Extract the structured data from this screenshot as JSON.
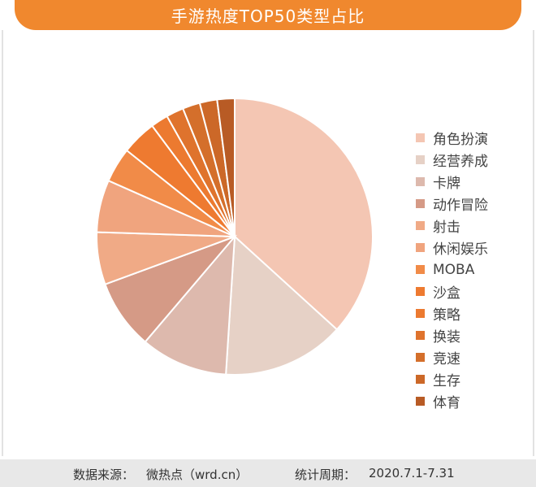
{
  "header": {
    "title": "手游热度TOP50类型占比"
  },
  "chart_data": {
    "type": "pie",
    "title": "手游热度TOP50类型占比",
    "slices": [
      {
        "label": "角色扮演",
        "value": 36,
        "color": "#f4c6b3"
      },
      {
        "label": "经营养成",
        "value": 14,
        "color": "#e6d1c6"
      },
      {
        "label": "卡牌",
        "value": 10,
        "color": "#ddb9ad"
      },
      {
        "label": "动作冒险",
        "value": 8,
        "color": "#d59a86"
      },
      {
        "label": "射击",
        "value": 6,
        "color": "#f0aa86"
      },
      {
        "label": "休闲娱乐",
        "value": 6,
        "color": "#f0a47e"
      },
      {
        "label": "MOBA",
        "value": 4,
        "color": "#f18b48"
      },
      {
        "label": "沙盒",
        "value": 4,
        "color": "#ee7a30"
      },
      {
        "label": "策略",
        "value": 2,
        "color": "#ec7a30"
      },
      {
        "label": "换装",
        "value": 2,
        "color": "#df732d"
      },
      {
        "label": "竞速",
        "value": 2,
        "color": "#d46f2b"
      },
      {
        "label": "生存",
        "value": 2,
        "color": "#cc6828"
      },
      {
        "label": "体育",
        "value": 2,
        "color": "#b85b25"
      }
    ],
    "legend_position": "right"
  },
  "footer": {
    "source_label": "数据来源：",
    "source_value": "微热点（wrd.cn）",
    "period_label": "统计周期：",
    "period_value": "2020.7.1-7.31"
  }
}
